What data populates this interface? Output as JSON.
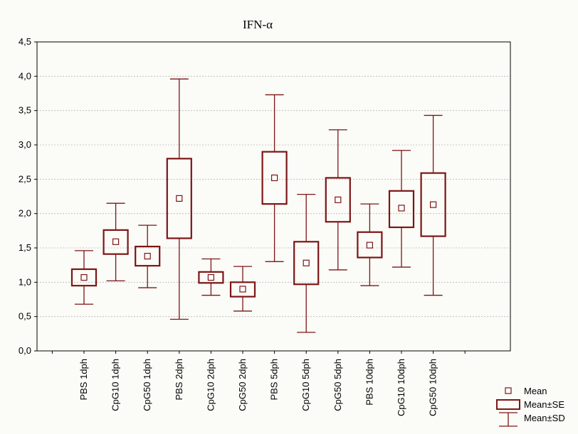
{
  "chart_data": {
    "type": "boxplot",
    "title": "IFN-α",
    "xlabel": "",
    "ylabel": "",
    "ylim": [
      0,
      4.5
    ],
    "yticks": [
      "0,0",
      "0,5",
      "1,0",
      "1,5",
      "2,0",
      "2,5",
      "3,0",
      "3,5",
      "4,0",
      "4,5"
    ],
    "grid": true,
    "legend_position": "bottom-right",
    "color": "#7b1616",
    "categories": [
      "PBS 1dph",
      "CpG10 1dph",
      "CpG50 1dph",
      "PBS 2dph",
      "CpG10 2dph",
      "CpG50 2dph",
      "PBS 5dph",
      "CpG10 5dph",
      "CpG50 5dph",
      "PBS 10dph",
      "CpG10 10dph",
      "CpG50 10dph"
    ],
    "mean": [
      1.07,
      1.59,
      1.38,
      2.22,
      1.07,
      0.9,
      2.52,
      1.28,
      2.2,
      1.54,
      2.08,
      2.13
    ],
    "se_low": [
      0.95,
      1.41,
      1.24,
      1.64,
      0.99,
      0.79,
      2.14,
      0.97,
      1.88,
      1.36,
      1.8,
      1.67
    ],
    "se_high": [
      1.19,
      1.76,
      1.52,
      2.8,
      1.15,
      1.0,
      2.9,
      1.59,
      2.52,
      1.73,
      2.33,
      2.59
    ],
    "sd_low": [
      0.68,
      1.02,
      0.92,
      0.46,
      0.81,
      0.58,
      1.3,
      0.27,
      1.18,
      0.95,
      1.22,
      0.81
    ],
    "sd_high": [
      1.46,
      2.15,
      1.83,
      3.96,
      1.34,
      1.23,
      3.73,
      2.28,
      3.22,
      2.14,
      2.92,
      3.43
    ],
    "legend": [
      {
        "key": "mean",
        "label": "Mean"
      },
      {
        "key": "se",
        "label": "Mean±SE"
      },
      {
        "key": "sd",
        "label": "Mean±SD"
      }
    ]
  }
}
